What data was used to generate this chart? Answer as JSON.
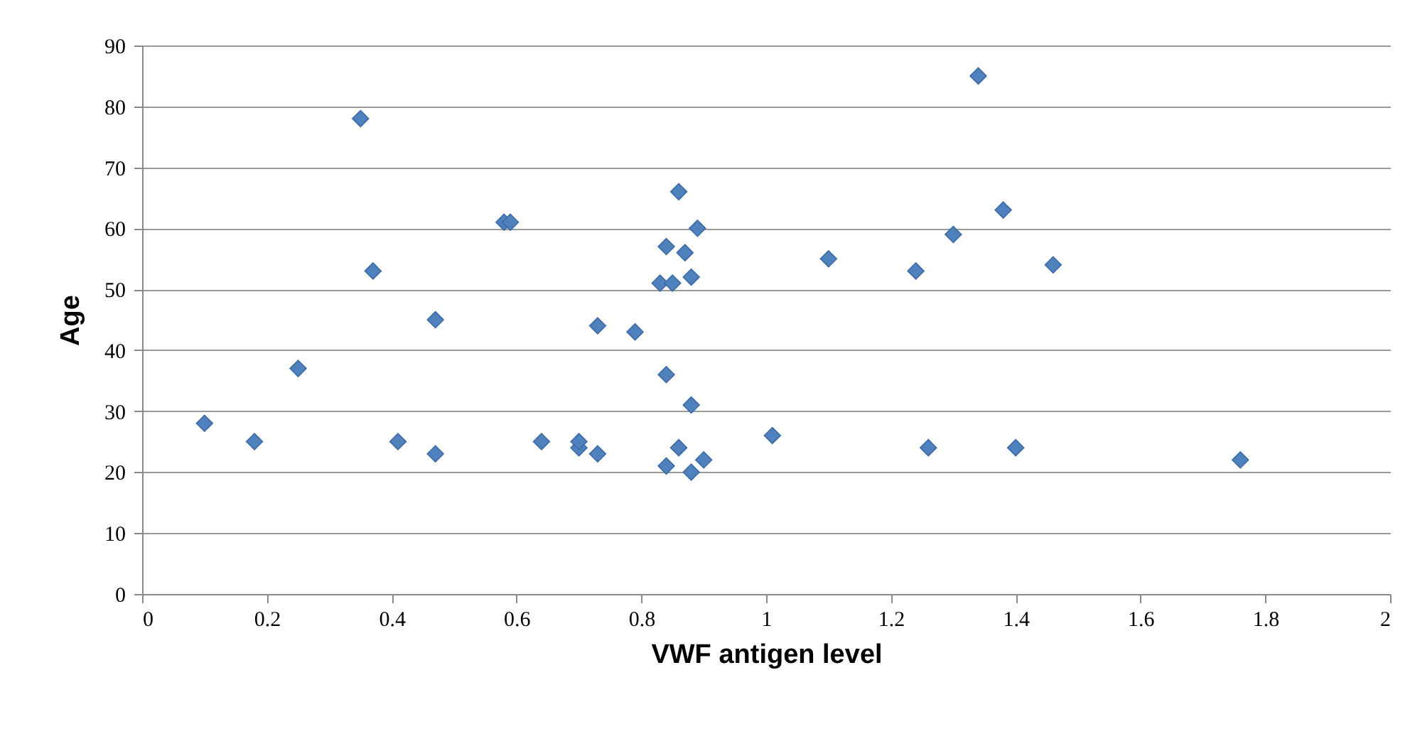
{
  "chart_data": {
    "type": "scatter",
    "xlabel": "VWF antigen level",
    "ylabel": "Age",
    "x": [
      0.1,
      0.18,
      0.25,
      0.35,
      0.37,
      0.41,
      0.47,
      0.47,
      0.58,
      0.59,
      0.64,
      0.7,
      0.7,
      0.73,
      0.73,
      0.79,
      0.83,
      0.84,
      0.84,
      0.84,
      0.85,
      0.86,
      0.86,
      0.87,
      0.88,
      0.88,
      0.88,
      0.89,
      0.9,
      1.01,
      1.1,
      1.24,
      1.26,
      1.3,
      1.34,
      1.38,
      1.4,
      1.46,
      1.76
    ],
    "series": [
      {
        "color": "#4f81bd",
        "values": [
          28,
          25,
          37,
          78,
          53,
          25,
          45,
          23,
          61,
          61,
          25,
          24,
          25,
          23,
          44,
          43,
          51,
          57,
          36,
          21,
          51,
          66,
          24,
          56,
          52,
          31,
          20,
          60,
          22,
          26,
          55,
          53,
          24,
          59,
          85,
          63,
          24,
          54,
          22
        ]
      }
    ],
    "xlim": [
      0,
      2
    ],
    "xticks": [
      0,
      0.2,
      0.4,
      0.6,
      0.8,
      1,
      1.2,
      1.4,
      1.6,
      1.8,
      2
    ],
    "ylim": [
      0,
      90
    ],
    "yticks": [
      0,
      10,
      20,
      30,
      40,
      50,
      60,
      70,
      80,
      90
    ],
    "grid": "y",
    "marker": "diamond"
  }
}
